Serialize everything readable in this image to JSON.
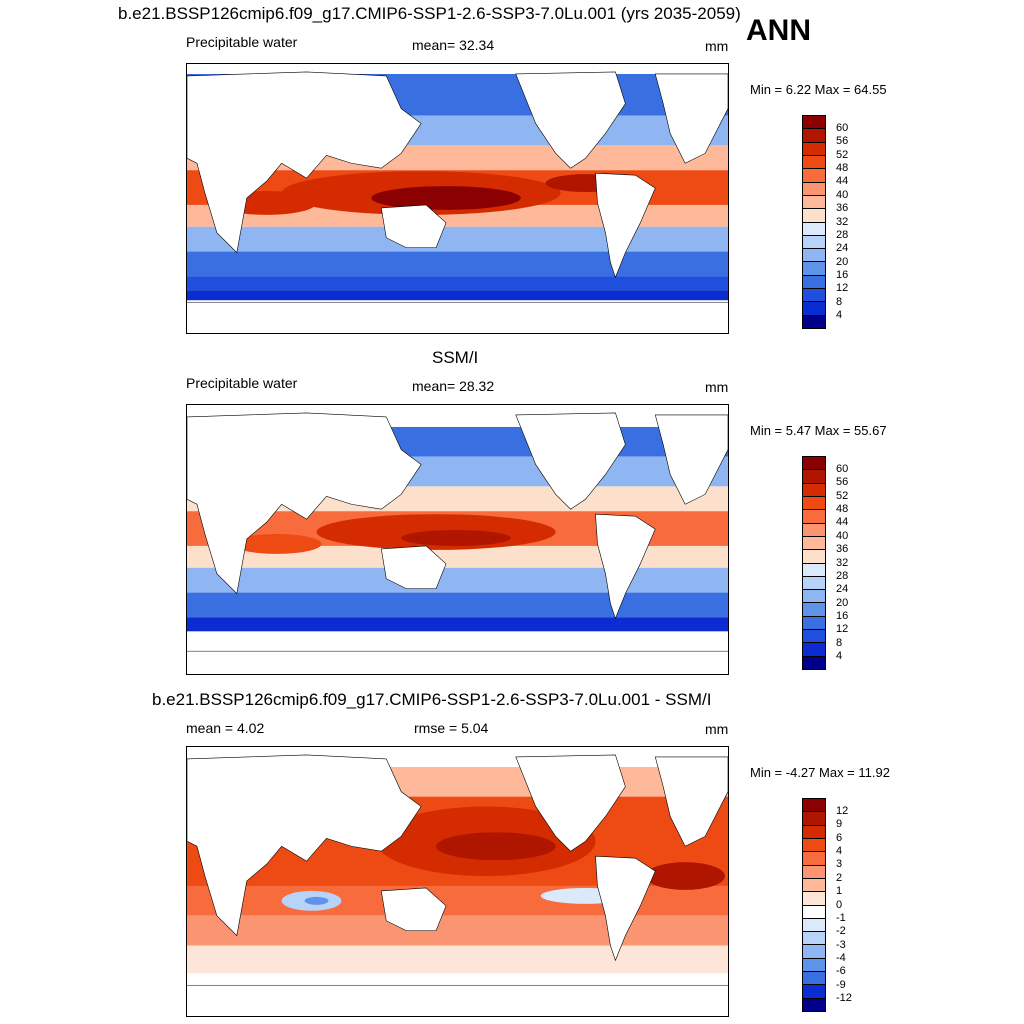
{
  "header": {
    "title": "b.e21.BSSP126cmip6.f09_g17.CMIP6-SSP1-2.6-SSP3-7.0Lu.001 (yrs 2035-2059)",
    "season": "ANN"
  },
  "panels": [
    {
      "title": "",
      "left": "Precipitable water",
      "center": "mean=  32.34",
      "units": "mm",
      "minmax": "Min =   6.22 Max =  64.55",
      "colorbar": {
        "labels": [
          "60",
          "56",
          "52",
          "48",
          "44",
          "40",
          "36",
          "32",
          "28",
          "24",
          "20",
          "16",
          "12",
          "8",
          "4"
        ],
        "colors": [
          "#8b0000",
          "#b01500",
          "#d42b00",
          "#ee4a14",
          "#f86b3c",
          "#fb9470",
          "#fdb99a",
          "#fde0cc",
          "#dbe9fb",
          "#b8d3f8",
          "#8fb6f2",
          "#5f93ea",
          "#3a6fe2",
          "#1f4fdc",
          "#0a2cd0",
          "#00008b"
        ]
      }
    },
    {
      "title": "SSM/I",
      "left": "Precipitable water",
      "center": "mean=  28.32",
      "units": "mm",
      "minmax": "Min =   5.47 Max =  55.67",
      "colorbar": {
        "labels": [
          "60",
          "56",
          "52",
          "48",
          "44",
          "40",
          "36",
          "32",
          "28",
          "24",
          "20",
          "16",
          "12",
          "8",
          "4"
        ],
        "colors": [
          "#8b0000",
          "#b01500",
          "#d42b00",
          "#ee4a14",
          "#f86b3c",
          "#fb9470",
          "#fdb99a",
          "#fde0cc",
          "#dbe9fb",
          "#b8d3f8",
          "#8fb6f2",
          "#5f93ea",
          "#3a6fe2",
          "#1f4fdc",
          "#0a2cd0",
          "#00008b"
        ]
      }
    },
    {
      "title": "b.e21.BSSP126cmip6.f09_g17.CMIP6-SSP1-2.6-SSP3-7.0Lu.001 - SSM/I",
      "left": "mean =   4.02",
      "center": "rmse =   5.04",
      "units": "mm",
      "minmax": "Min =  -4.27 Max =  11.92",
      "colorbar": {
        "labels": [
          "12",
          "9",
          "6",
          "4",
          "3",
          "2",
          "1",
          "0",
          "-1",
          "-2",
          "-3",
          "-4",
          "-6",
          "-9",
          "-12"
        ],
        "colors": [
          "#8b0000",
          "#b01500",
          "#d42b00",
          "#ee4a14",
          "#f86b3c",
          "#fb9470",
          "#fdb99a",
          "#fde6d8",
          "#ffffff",
          "#dbe9fb",
          "#b8d3f8",
          "#8fb6f2",
          "#5f93ea",
          "#3a6fe2",
          "#0a2cd0",
          "#00008b"
        ]
      }
    }
  ]
}
